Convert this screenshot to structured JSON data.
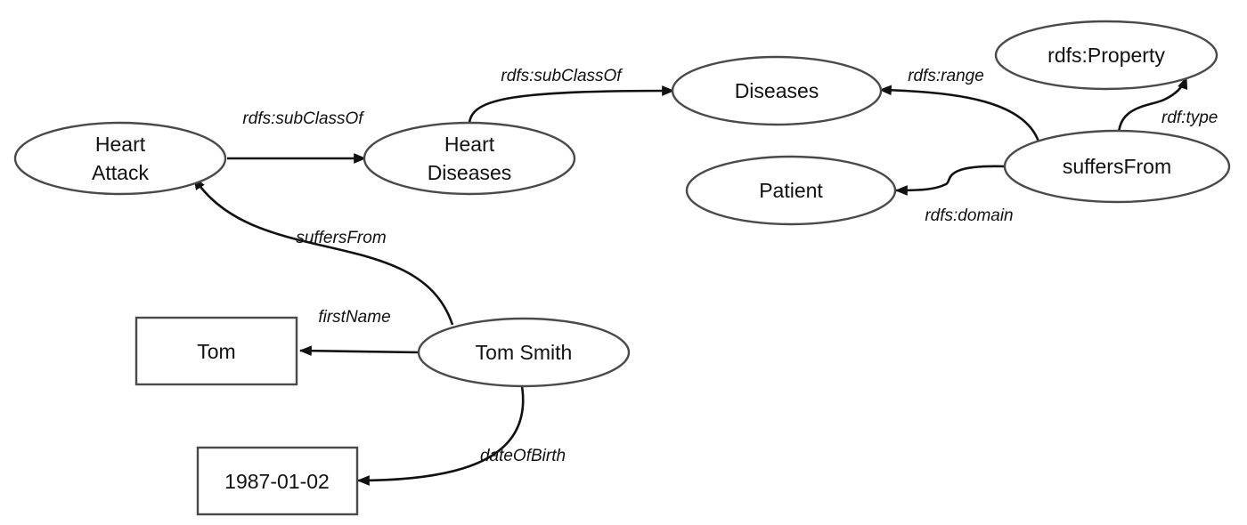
{
  "nodes": {
    "heart_attack": {
      "lines": [
        "Heart",
        "Attack"
      ],
      "shape": "ellipse"
    },
    "heart_diseases": {
      "lines": [
        "Heart",
        "Diseases"
      ],
      "shape": "ellipse"
    },
    "diseases": {
      "lines": [
        "Diseases"
      ],
      "shape": "ellipse"
    },
    "rdfs_property": {
      "lines": [
        "rdfs:Property"
      ],
      "shape": "ellipse"
    },
    "patient": {
      "lines": [
        "Patient"
      ],
      "shape": "ellipse"
    },
    "suffersfrom_prop": {
      "lines": [
        "suffersFrom"
      ],
      "shape": "ellipse"
    },
    "tom_smith": {
      "lines": [
        "Tom Smith"
      ],
      "shape": "ellipse"
    },
    "tom": {
      "lines": [
        "Tom"
      ],
      "shape": "rectangle"
    },
    "dob_value": {
      "lines": [
        "1987-01-02"
      ],
      "shape": "rectangle"
    }
  },
  "edges": {
    "heartattack_subclassof": {
      "label": "rdfs:subClassOf",
      "from": "heart_attack",
      "to": "heart_diseases"
    },
    "heartdiseases_subclassof": {
      "label": "rdfs:subClassOf",
      "from": "heart_diseases",
      "to": "diseases"
    },
    "range": {
      "label": "rdfs:range",
      "from": "suffersfrom_prop",
      "to": "diseases"
    },
    "type": {
      "label": "rdf:type",
      "from": "suffersfrom_prop",
      "to": "rdfs_property"
    },
    "domain": {
      "label": "rdfs:domain",
      "from": "suffersfrom_prop",
      "to": "patient"
    },
    "suffersfrom": {
      "label": "suffersFrom",
      "from": "tom_smith",
      "to": "heart_attack"
    },
    "firstname": {
      "label": "firstName",
      "from": "tom_smith",
      "to": "tom"
    },
    "dateofbirth": {
      "label": "dateOfBirth",
      "from": "tom_smith",
      "to": "dob_value"
    }
  },
  "colors": {
    "node_stroke": "#4a4a4a",
    "edge": "#111111",
    "text": "#111111",
    "background": "#ffffff"
  }
}
